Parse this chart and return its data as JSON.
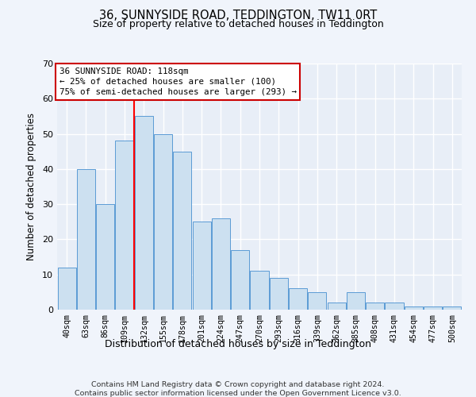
{
  "title": "36, SUNNYSIDE ROAD, TEDDINGTON, TW11 0RT",
  "subtitle": "Size of property relative to detached houses in Teddington",
  "xlabel": "Distribution of detached houses by size in Teddington",
  "ylabel": "Number of detached properties",
  "bar_labels": [
    "40sqm",
    "63sqm",
    "86sqm",
    "109sqm",
    "132sqm",
    "155sqm",
    "178sqm",
    "201sqm",
    "224sqm",
    "247sqm",
    "270sqm",
    "293sqm",
    "316sqm",
    "339sqm",
    "362sqm",
    "385sqm",
    "408sqm",
    "431sqm",
    "454sqm",
    "477sqm",
    "500sqm"
  ],
  "bar_values": [
    12,
    40,
    30,
    48,
    55,
    50,
    45,
    25,
    26,
    17,
    11,
    9,
    6,
    5,
    2,
    5,
    2,
    2,
    1,
    1,
    1
  ],
  "bar_color": "#cce0f0",
  "bar_edge_color": "#5b9bd5",
  "background_color": "#e8eef7",
  "grid_color": "#ffffff",
  "red_line_x": 3.5,
  "annotation_line1": "36 SUNNYSIDE ROAD: 118sqm",
  "annotation_line2": "← 25% of detached houses are smaller (100)",
  "annotation_line3": "75% of semi-detached houses are larger (293) →",
  "annotation_box_color": "#ffffff",
  "annotation_box_edge": "#cc0000",
  "ylim": [
    0,
    70
  ],
  "yticks": [
    0,
    10,
    20,
    30,
    40,
    50,
    60,
    70
  ],
  "footer_line1": "Contains HM Land Registry data © Crown copyright and database right 2024.",
  "footer_line2": "Contains public sector information licensed under the Open Government Licence v3.0."
}
